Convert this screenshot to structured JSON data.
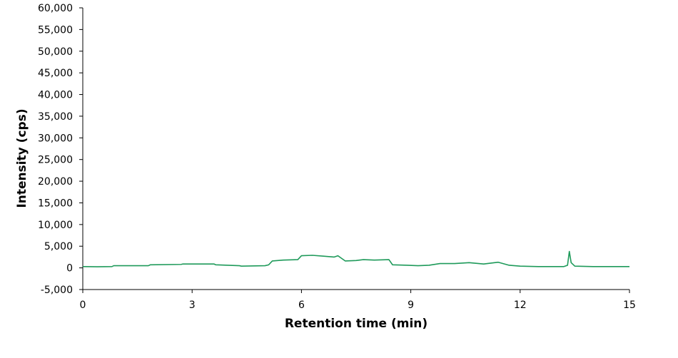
{
  "chart_data": {
    "type": "line",
    "x_label": "Retention time (min)",
    "y_label": "Intensity (cps)",
    "x": [
      0,
      0.4,
      0.8,
      0.85,
      1.8,
      1.85,
      2.7,
      2.75,
      3.6,
      3.65,
      4.3,
      4.35,
      5.0,
      5.1,
      5.2,
      5.5,
      5.9,
      6.0,
      6.3,
      6.6,
      6.9,
      7.0,
      7.2,
      7.5,
      7.7,
      8.0,
      8.4,
      8.5,
      8.9,
      9.2,
      9.5,
      9.8,
      10.2,
      10.6,
      11.0,
      11.4,
      11.7,
      12.0,
      12.5,
      13.2,
      13.3,
      13.35,
      13.4,
      13.5,
      14.0,
      15.0
    ],
    "series": [
      {
        "name": "Intensity",
        "color": "#1e9a5a",
        "values": [
          300,
          250,
          300,
          500,
          500,
          700,
          800,
          900,
          900,
          700,
          500,
          400,
          500,
          700,
          1600,
          1800,
          1900,
          2800,
          2900,
          2700,
          2500,
          2800,
          1600,
          1700,
          1900,
          1800,
          1900,
          700,
          600,
          500,
          600,
          1000,
          1000,
          1200,
          900,
          1300,
          600,
          400,
          300,
          300,
          600,
          3800,
          1200,
          400,
          300,
          300
        ]
      }
    ],
    "xlim": [
      0,
      15
    ],
    "xticks": [
      0,
      3,
      6,
      9,
      12,
      15
    ],
    "ylim": [
      -5000,
      60000
    ],
    "yticks": [
      {
        "value": -5000,
        "label": "-5,000"
      },
      0,
      {
        "value": 5000,
        "label": "5,000"
      },
      {
        "value": 10000,
        "label": "10,000"
      },
      {
        "value": 15000,
        "label": "15,000"
      },
      {
        "value": 20000,
        "label": "20,000"
      },
      {
        "value": 25000,
        "label": "25,000"
      },
      {
        "value": 30000,
        "label": "30,000"
      },
      {
        "value": 35000,
        "label": "35,000"
      },
      {
        "value": 40000,
        "label": "40,000"
      },
      {
        "value": 45000,
        "label": "45,000"
      },
      {
        "value": 50000,
        "label": "50,000"
      },
      {
        "value": 55000,
        "label": "55,000"
      },
      {
        "value": 60000,
        "label": "60,000"
      }
    ],
    "grid": false
  }
}
